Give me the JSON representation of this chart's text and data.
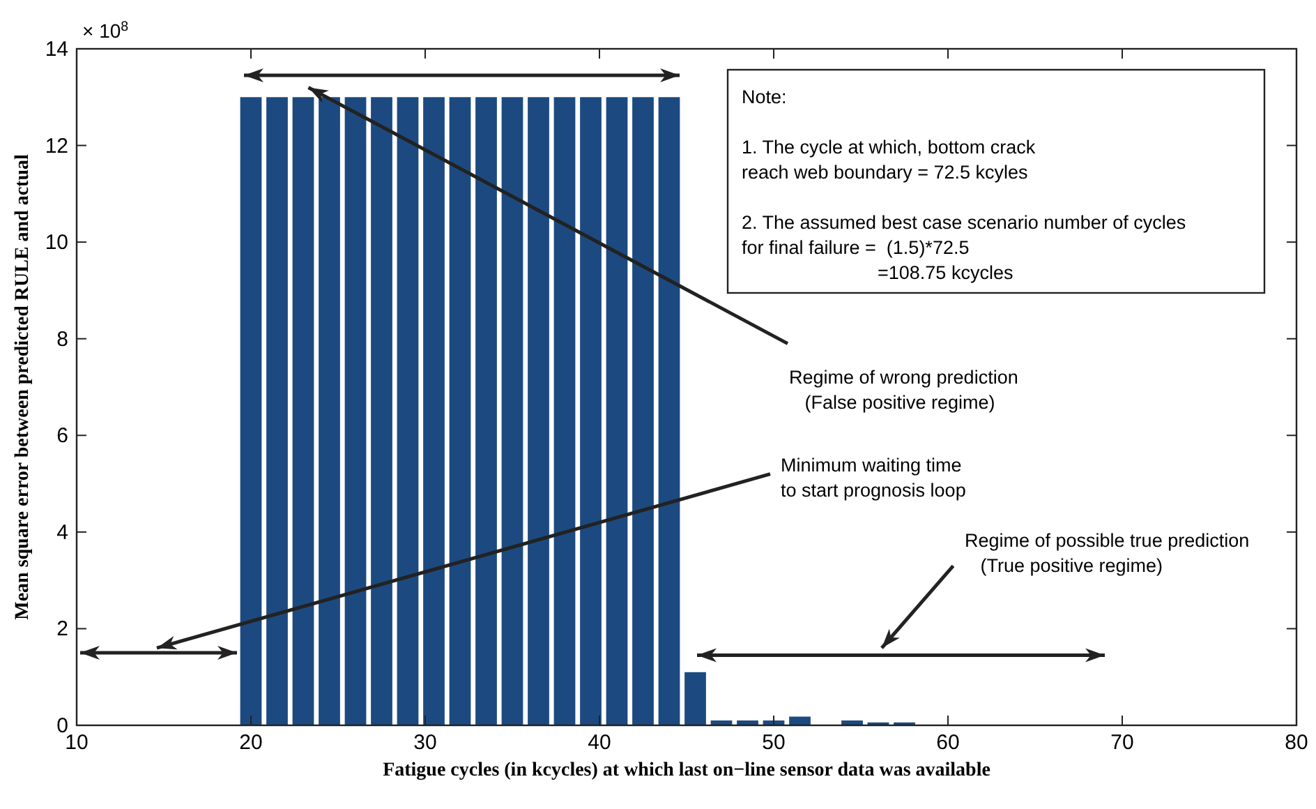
{
  "chart_data": {
    "type": "bar",
    "xlabel": "Fatigue cycles (in kcycles) at which last on−line sensor data was available",
    "ylabel": "Mean square error between predicted RULE and actual",
    "x": [
      20,
      21.5,
      23,
      24.5,
      26,
      27.5,
      29,
      30.5,
      32,
      33.5,
      35,
      36.5,
      38,
      39.5,
      41,
      42.5,
      44,
      45.5,
      47,
      48.5,
      50,
      51.5,
      53,
      54.5,
      56,
      57.5
    ],
    "values": [
      13,
      13,
      13,
      13,
      13,
      13,
      13,
      13,
      13,
      13,
      13,
      13,
      13,
      13,
      13,
      13,
      13,
      1.1,
      0.1,
      0.1,
      0.1,
      0.18,
      0,
      0.1,
      0.06,
      0.06
    ],
    "color": "#1c4a80",
    "xlim": [
      10,
      80
    ],
    "xticks": [
      10,
      20,
      30,
      40,
      50,
      60,
      70,
      80
    ],
    "ylim": [
      0,
      14
    ],
    "yticks": [
      0,
      2,
      4,
      6,
      8,
      10,
      12,
      14
    ],
    "annotations": [
      "× 10$^{8}$",
      "Note:\n\n1. The cycle at which, bottom crack\nreach web boundary = 72.5 kcyles\n\n2. The assumed best case scenario number of cycles\nfor final failure =  (1.5)*72.5\n                          =108.75 kcycles",
      "Regime of wrong prediction\n   (False positive regime)",
      "Minimum waiting time\nto start prognosis loop",
      "Regime of possible true prediction\n   (True positive regime)"
    ]
  }
}
